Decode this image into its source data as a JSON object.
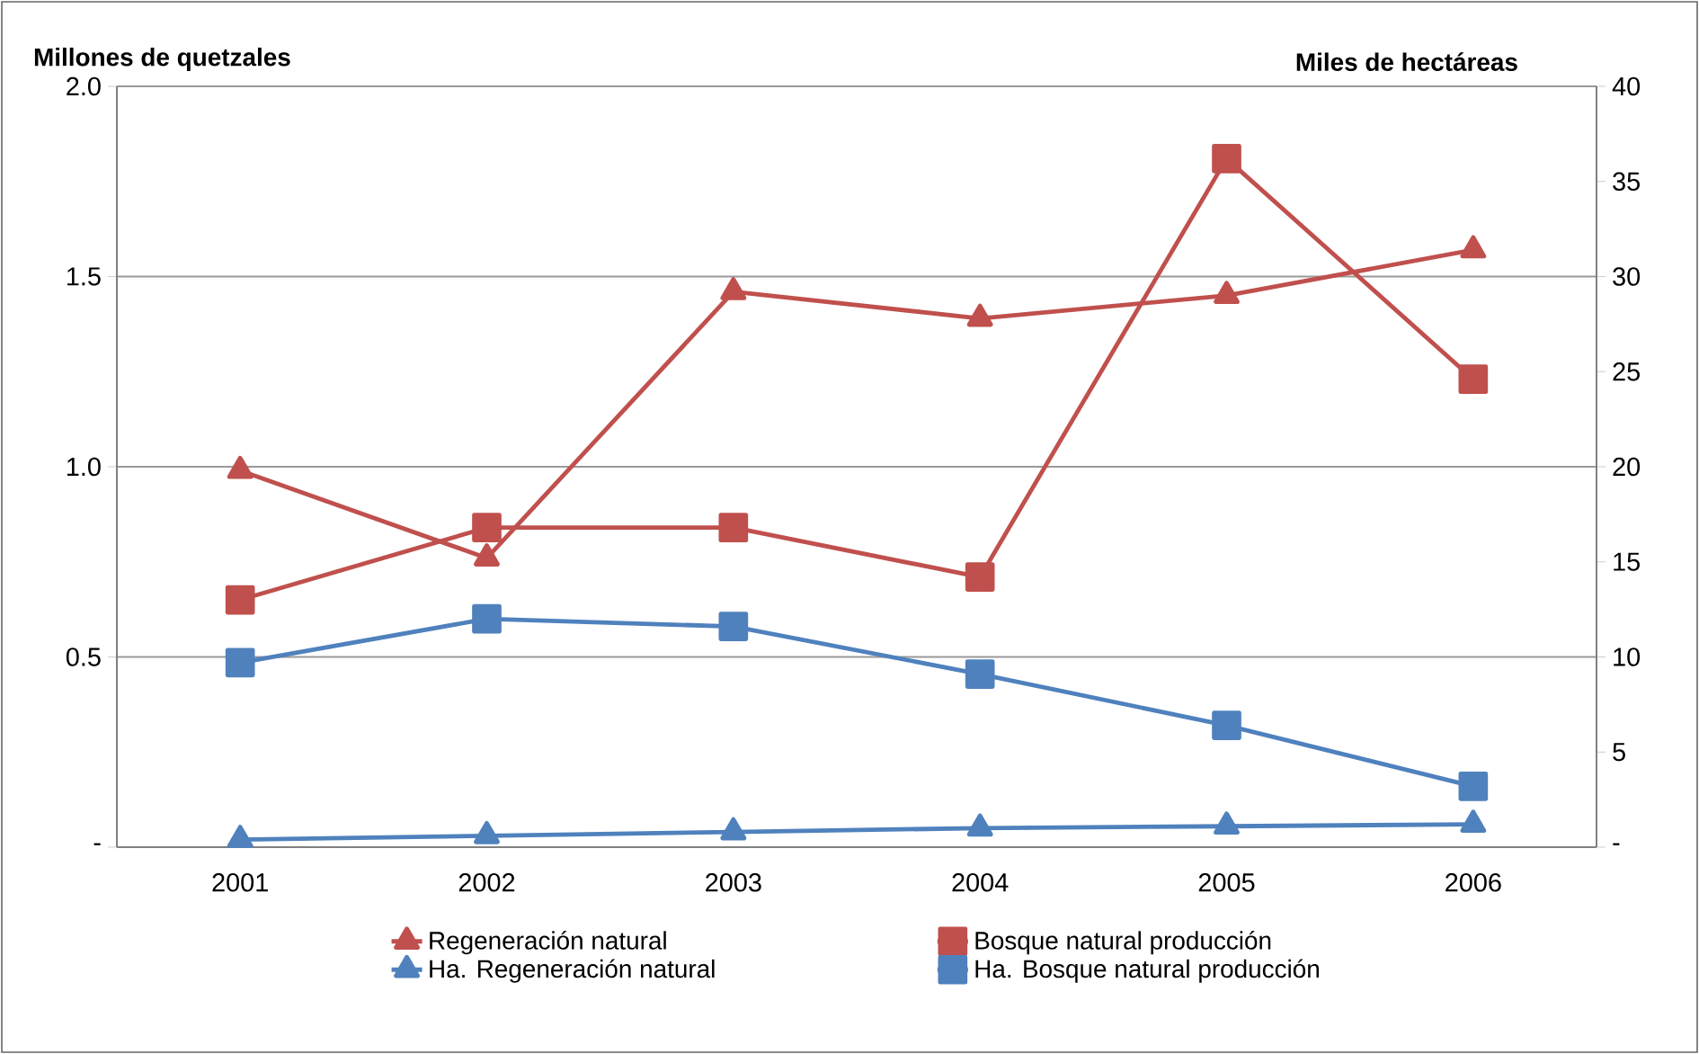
{
  "chart_data": {
    "type": "line",
    "ylabel": "Millones de quetzales",
    "y2label": "Miles de hectáreas",
    "categories": [
      "2001",
      "2002",
      "2003",
      "2004",
      "2005",
      "2006"
    ],
    "series": [
      {
        "name": "Regeneración natural",
        "color": "#c0504d",
        "marker": "triangle",
        "values": [
          0.99,
          0.76,
          1.46,
          1.39,
          1.45,
          1.57
        ]
      },
      {
        "name": "Bosque natural producción",
        "color": "#c0504d",
        "marker": "square",
        "values": [
          0.65,
          0.84,
          0.84,
          0.71,
          1.81,
          1.23
        ]
      },
      {
        "name": "Ha. Regeneración natural",
        "color": "#4f81bd",
        "marker": "triangle",
        "axis": "y2",
        "values": [
          0.4,
          0.6,
          0.8,
          1.0,
          1.1,
          1.2
        ]
      },
      {
        "name": "Ha. Bosque natural producción",
        "color": "#4f81bd",
        "marker": "square",
        "axis": "y2",
        "values": [
          9.7,
          12.0,
          11.6,
          9.1,
          6.4,
          3.2
        ]
      }
    ],
    "ylim": [
      0,
      2
    ],
    "yticks": [
      {
        "value": 0,
        "label": "-"
      },
      0.5,
      {
        "value": 1,
        "label": "1.0"
      },
      1.5,
      {
        "value": 2,
        "label": "2.0"
      }
    ],
    "y2lim": [
      0,
      40
    ],
    "y2ticks": [
      {
        "value": 0,
        "label": "-"
      },
      5,
      10,
      15,
      20,
      25,
      30,
      35,
      40
    ],
    "grid": "y",
    "legend": "bottom",
    "line_style": "solid"
  }
}
